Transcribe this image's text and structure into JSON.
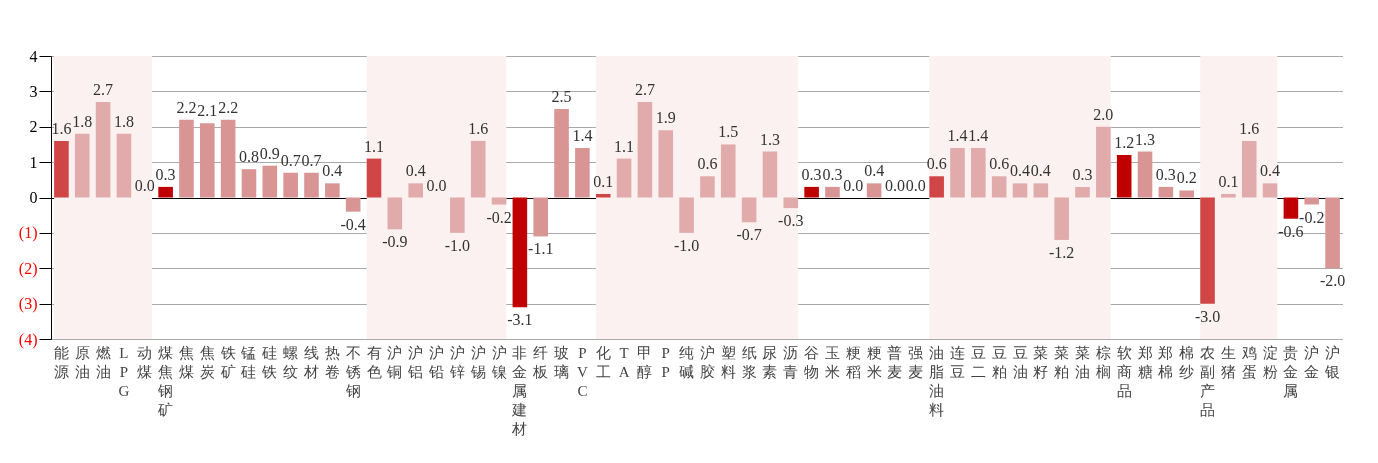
{
  "chart_data": {
    "type": "bar",
    "categories": [
      "能源",
      "原油",
      "燃油",
      "LPG",
      "动煤",
      "煤焦钢矿",
      "焦煤",
      "焦炭",
      "铁矿",
      "锰硅",
      "硅铁",
      "螺纹",
      "线材",
      "热卷",
      "不锈钢",
      "有色",
      "沪铜",
      "沪铝",
      "沪铅",
      "沪锌",
      "沪锡",
      "沪镍",
      "非金属建材",
      "纤板",
      "玻璃",
      "PVC",
      "化工",
      "TA",
      "甲醇",
      "PP",
      "纯碱",
      "沪胶",
      "塑料",
      "纸浆",
      "尿素",
      "沥青",
      "谷物",
      "玉米",
      "粳稻",
      "粳米",
      "普麦",
      "强麦",
      "油脂油料",
      "连豆",
      "豆二",
      "豆粕",
      "豆油",
      "菜籽",
      "菜粕",
      "菜油",
      "棕榈",
      "软商品",
      "郑糖",
      "郑棉",
      "棉纱",
      "农副产品",
      "生猪",
      "鸡蛋",
      "淀粉",
      "贵金属",
      "沪金",
      "沪银"
    ],
    "values": [
      1.6,
      1.8,
      2.7,
      1.8,
      0.0,
      0.3,
      2.2,
      2.1,
      2.2,
      0.8,
      0.9,
      0.7,
      0.7,
      0.4,
      -0.4,
      1.1,
      -0.9,
      0.4,
      0.0,
      -1.0,
      1.6,
      -0.2,
      -3.1,
      -1.1,
      2.5,
      1.4,
      0.1,
      1.1,
      2.7,
      1.9,
      -1.0,
      0.6,
      1.5,
      -0.7,
      1.3,
      -0.3,
      0.3,
      0.3,
      0.0,
      0.4,
      0.0,
      0.0,
      0.6,
      1.4,
      1.4,
      0.6,
      0.4,
      0.4,
      -1.2,
      0.3,
      2.0,
      1.2,
      1.3,
      0.3,
      0.2,
      -3.0,
      0.1,
      1.6,
      0.4,
      -0.6,
      -0.2,
      -2.0
    ],
    "colors": [
      "#d04545",
      "#e2abab",
      "#e2abab",
      "#e2abab",
      "#e2abab",
      "#c00000",
      "#d99494",
      "#d99494",
      "#d99494",
      "#d99494",
      "#d99494",
      "#d99494",
      "#d99494",
      "#d99494",
      "#d99494",
      "#d04545",
      "#e2abab",
      "#e2abab",
      "#e2abab",
      "#e2abab",
      "#e2abab",
      "#e2abab",
      "#c00000",
      "#d99494",
      "#d99494",
      "#d99494",
      "#d04545",
      "#e2abab",
      "#e2abab",
      "#e2abab",
      "#e2abab",
      "#e2abab",
      "#e2abab",
      "#e2abab",
      "#e2abab",
      "#e2abab",
      "#c00000",
      "#d99494",
      "#d99494",
      "#d99494",
      "#d99494",
      "#d99494",
      "#d04545",
      "#e2abab",
      "#e2abab",
      "#e2abab",
      "#e2abab",
      "#e2abab",
      "#e2abab",
      "#e2abab",
      "#e2abab",
      "#c00000",
      "#d99494",
      "#d99494",
      "#d99494",
      "#d04545",
      "#e2abab",
      "#e2abab",
      "#e2abab",
      "#c00000",
      "#d99494",
      "#d99494"
    ],
    "ylim": [
      -4,
      4
    ],
    "yticks": [
      {
        "value": -4,
        "label": "(4)"
      },
      {
        "value": -3,
        "label": "(3)"
      },
      {
        "value": -2,
        "label": "(2)"
      },
      {
        "value": -1,
        "label": "(1)"
      },
      0,
      1,
      2,
      3,
      4
    ],
    "grid": "y",
    "value_labels": [
      "1.6",
      "1.8",
      "2.7",
      "1.8",
      "0.0",
      "0.3",
      "2.2",
      "2.1",
      "2.2",
      "0.8",
      "0.9",
      "0.7",
      "0.7",
      "0.4",
      "-0.4",
      "1.1",
      "-0.9",
      "0.4",
      "0.0",
      "-1.0",
      "1.6",
      "-0.2",
      "-3.1",
      "-1.1",
      "2.5",
      "1.4",
      "0.1",
      "1.1",
      "2.7",
      "1.9",
      "-1.0",
      "0.6",
      "1.5",
      "-0.7",
      "1.3",
      "-0.3",
      "0.3",
      "0.3",
      "0.0",
      "0.4",
      "0.0",
      "0.0",
      "0.6",
      "1.4",
      "1.4",
      "0.6",
      "0.4",
      "0.4",
      "-1.2",
      "0.3",
      "2.0",
      "1.2",
      "1.3",
      "0.3",
      "0.2",
      "-3.0",
      "0.1",
      "1.6",
      "0.4",
      "-0.6",
      "-0.2",
      "-2.0"
    ],
    "bands": [
      {
        "axis": "x",
        "from": "能源",
        "to": "动煤",
        "color": "#fbf1f0"
      },
      {
        "axis": "x",
        "from": "有色",
        "to": "沪镍",
        "color": "#fbf1f0"
      },
      {
        "axis": "x",
        "from": "化工",
        "to": "沥青",
        "color": "#fbf1f0"
      },
      {
        "axis": "x",
        "from": "油脂油料",
        "to": "棕榈",
        "color": "#fbf1f0"
      },
      {
        "axis": "x",
        "from": "农副产品",
        "to": "淀粉",
        "color": "#fbf1f0"
      }
    ]
  }
}
